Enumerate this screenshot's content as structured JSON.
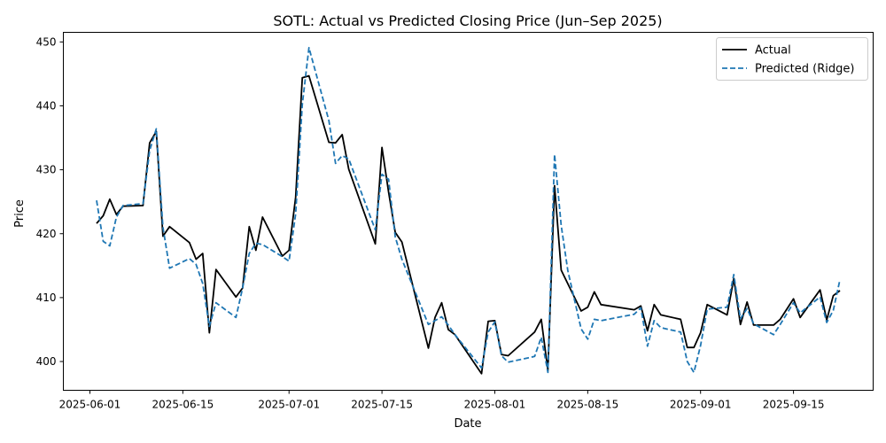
{
  "chart_data": {
    "type": "line",
    "title": "SOTL: Actual vs Predicted Closing Price (Jun–Sep 2025)",
    "xlabel": "Date",
    "ylabel": "Price",
    "xlim": [
      "2025-05-28",
      "2025-09-27"
    ],
    "ylim": [
      395.5,
      451.5
    ],
    "x_ticks": [
      "2025-06-01",
      "2025-06-15",
      "2025-07-01",
      "2025-07-15",
      "2025-08-01",
      "2025-08-15",
      "2025-09-01",
      "2025-09-15"
    ],
    "y_ticks": [
      400,
      410,
      420,
      430,
      440,
      450
    ],
    "grid": false,
    "legend_position": "top-right",
    "series": [
      {
        "name": "Actual",
        "color": "#000000",
        "style": "solid",
        "points": [
          [
            "2025-06-02",
            421.6
          ],
          [
            "2025-06-03",
            422.8
          ],
          [
            "2025-06-04",
            425.4
          ],
          [
            "2025-06-05",
            423.0
          ],
          [
            "2025-06-06",
            424.3
          ],
          [
            "2025-06-09",
            424.4
          ],
          [
            "2025-06-10",
            434.2
          ],
          [
            "2025-06-11",
            436.0
          ],
          [
            "2025-06-12",
            419.6
          ],
          [
            "2025-06-13",
            421.1
          ],
          [
            "2025-06-16",
            418.6
          ],
          [
            "2025-06-17",
            416.0
          ],
          [
            "2025-06-18",
            416.9
          ],
          [
            "2025-06-19",
            404.5
          ],
          [
            "2025-06-20",
            414.4
          ],
          [
            "2025-06-23",
            410.1
          ],
          [
            "2025-06-24",
            411.5
          ],
          [
            "2025-06-25",
            421.1
          ],
          [
            "2025-06-26",
            417.4
          ],
          [
            "2025-06-27",
            422.6
          ],
          [
            "2025-06-30",
            416.5
          ],
          [
            "2025-07-01",
            417.4
          ],
          [
            "2025-07-02",
            425.7
          ],
          [
            "2025-07-03",
            444.4
          ],
          [
            "2025-07-04",
            444.7
          ],
          [
            "2025-07-07",
            434.3
          ],
          [
            "2025-07-08",
            434.2
          ],
          [
            "2025-07-09",
            435.5
          ],
          [
            "2025-07-10",
            430.1
          ],
          [
            "2025-07-14",
            418.4
          ],
          [
            "2025-07-15",
            433.5
          ],
          [
            "2025-07-16",
            426.5
          ],
          [
            "2025-07-17",
            420.2
          ],
          [
            "2025-07-18",
            418.7
          ],
          [
            "2025-07-22",
            402.1
          ],
          [
            "2025-07-23",
            406.9
          ],
          [
            "2025-07-24",
            409.2
          ],
          [
            "2025-07-25",
            405.0
          ],
          [
            "2025-07-26",
            404.2
          ],
          [
            "2025-07-30",
            398.1
          ],
          [
            "2025-07-31",
            406.3
          ],
          [
            "2025-08-01",
            406.4
          ],
          [
            "2025-08-02",
            401.1
          ],
          [
            "2025-08-03",
            400.9
          ],
          [
            "2025-08-07",
            404.6
          ],
          [
            "2025-08-08",
            406.6
          ],
          [
            "2025-08-09",
            398.6
          ],
          [
            "2025-08-10",
            427.5
          ],
          [
            "2025-08-11",
            414.3
          ],
          [
            "2025-08-14",
            407.9
          ],
          [
            "2025-08-15",
            408.5
          ],
          [
            "2025-08-16",
            410.9
          ],
          [
            "2025-08-17",
            408.9
          ],
          [
            "2025-08-22",
            408.1
          ],
          [
            "2025-08-23",
            408.7
          ],
          [
            "2025-08-24",
            404.8
          ],
          [
            "2025-08-25",
            408.9
          ],
          [
            "2025-08-26",
            407.3
          ],
          [
            "2025-08-29",
            406.6
          ],
          [
            "2025-08-30",
            402.2
          ],
          [
            "2025-08-31",
            402.2
          ],
          [
            "2025-09-01",
            404.5
          ],
          [
            "2025-09-02",
            408.9
          ],
          [
            "2025-09-05",
            407.3
          ],
          [
            "2025-09-06",
            413.0
          ],
          [
            "2025-09-07",
            405.8
          ],
          [
            "2025-09-08",
            409.3
          ],
          [
            "2025-09-09",
            405.7
          ],
          [
            "2025-09-12",
            405.7
          ],
          [
            "2025-09-13",
            406.6
          ],
          [
            "2025-09-15",
            409.8
          ],
          [
            "2025-09-16",
            406.9
          ],
          [
            "2025-09-19",
            411.2
          ],
          [
            "2025-09-20",
            406.5
          ],
          [
            "2025-09-21",
            410.3
          ],
          [
            "2025-09-22",
            411.1
          ]
        ]
      },
      {
        "name": "Predicted (Ridge)",
        "color": "#1f77b4",
        "style": "dashed",
        "points": [
          [
            "2025-06-02",
            425.2
          ],
          [
            "2025-06-03",
            418.8
          ],
          [
            "2025-06-04",
            418.1
          ],
          [
            "2025-06-05",
            422.6
          ],
          [
            "2025-06-06",
            424.4
          ],
          [
            "2025-06-09",
            424.7
          ],
          [
            "2025-06-10",
            433.0
          ],
          [
            "2025-06-11",
            436.4
          ],
          [
            "2025-06-12",
            421.0
          ],
          [
            "2025-06-13",
            414.6
          ],
          [
            "2025-06-16",
            416.1
          ],
          [
            "2025-06-17",
            415.2
          ],
          [
            "2025-06-18",
            412.2
          ],
          [
            "2025-06-19",
            405.5
          ],
          [
            "2025-06-20",
            409.2
          ],
          [
            "2025-06-23",
            406.9
          ],
          [
            "2025-06-24",
            411.5
          ],
          [
            "2025-06-25",
            416.9
          ],
          [
            "2025-06-26",
            418.5
          ],
          [
            "2025-06-27",
            418.3
          ],
          [
            "2025-06-30",
            416.4
          ],
          [
            "2025-07-01",
            415.7
          ],
          [
            "2025-07-02",
            423.1
          ],
          [
            "2025-07-03",
            440.2
          ],
          [
            "2025-07-04",
            449.1
          ],
          [
            "2025-07-07",
            437.7
          ],
          [
            "2025-07-08",
            431.0
          ],
          [
            "2025-07-09",
            432.2
          ],
          [
            "2025-07-10",
            431.7
          ],
          [
            "2025-07-14",
            420.6
          ],
          [
            "2025-07-15",
            429.3
          ],
          [
            "2025-07-16",
            428.5
          ],
          [
            "2025-07-17",
            419.5
          ],
          [
            "2025-07-18",
            416.0
          ],
          [
            "2025-07-22",
            405.8
          ],
          [
            "2025-07-23",
            406.4
          ],
          [
            "2025-07-24",
            407.0
          ],
          [
            "2025-07-25",
            405.7
          ],
          [
            "2025-07-26",
            404.2
          ],
          [
            "2025-07-30",
            399.0
          ],
          [
            "2025-07-31",
            404.6
          ],
          [
            "2025-08-01",
            406.2
          ],
          [
            "2025-08-02",
            400.9
          ],
          [
            "2025-08-03",
            399.9
          ],
          [
            "2025-08-07",
            400.8
          ],
          [
            "2025-08-08",
            403.8
          ],
          [
            "2025-08-09",
            398.3
          ],
          [
            "2025-08-10",
            432.4
          ],
          [
            "2025-08-11",
            421.3
          ],
          [
            "2025-08-12",
            414.2
          ],
          [
            "2025-08-14",
            405.1
          ],
          [
            "2025-08-15",
            403.5
          ],
          [
            "2025-08-16",
            406.6
          ],
          [
            "2025-08-17",
            406.4
          ],
          [
            "2025-08-22",
            407.4
          ],
          [
            "2025-08-23",
            408.4
          ],
          [
            "2025-08-24",
            402.4
          ],
          [
            "2025-08-25",
            406.4
          ],
          [
            "2025-08-26",
            405.3
          ],
          [
            "2025-08-29",
            404.6
          ],
          [
            "2025-08-30",
            400.0
          ],
          [
            "2025-08-31",
            398.3
          ],
          [
            "2025-09-01",
            402.5
          ],
          [
            "2025-09-02",
            408.2
          ],
          [
            "2025-09-05",
            408.5
          ],
          [
            "2025-09-06",
            413.6
          ],
          [
            "2025-09-07",
            406.7
          ],
          [
            "2025-09-08",
            408.3
          ],
          [
            "2025-09-09",
            405.9
          ],
          [
            "2025-09-12",
            404.2
          ],
          [
            "2025-09-13",
            405.8
          ],
          [
            "2025-09-15",
            409.2
          ],
          [
            "2025-09-16",
            407.6
          ],
          [
            "2025-09-19",
            410.1
          ],
          [
            "2025-09-20",
            406.1
          ],
          [
            "2025-09-21",
            408.0
          ],
          [
            "2025-09-22",
            412.8
          ]
        ]
      }
    ]
  }
}
